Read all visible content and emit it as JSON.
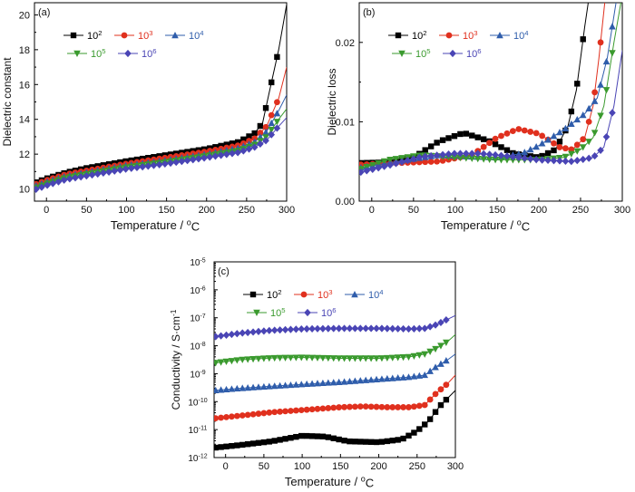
{
  "chart_data": [
    {
      "type": "line",
      "panel_label": "(a)",
      "xlabel": "Temperature / ",
      "xlabel_unit": "oC",
      "ylabel": "Dielectric constant",
      "xlim": [
        -15,
        300
      ],
      "ylim": [
        9.3,
        20.7
      ],
      "x_ticks": [
        0,
        50,
        100,
        150,
        200,
        250,
        300
      ],
      "y_ticks": [
        10,
        12,
        14,
        16,
        18,
        20
      ],
      "legend": "top-left",
      "series": [
        {
          "name": "10",
          "sup": "2",
          "color": "#000000",
          "marker": "square",
          "points": [
            [
              -15,
              10.35
            ],
            [
              0,
              10.6
            ],
            [
              25,
              10.95
            ],
            [
              50,
              11.2
            ],
            [
              100,
              11.6
            ],
            [
              150,
              11.95
            ],
            [
              200,
              12.3
            ],
            [
              240,
              12.7
            ],
            [
              260,
              13.2
            ],
            [
              270,
              13.8
            ],
            [
              278,
              15.5
            ],
            [
              290,
              18.0
            ],
            [
              300,
              20.6
            ]
          ]
        },
        {
          "name": "10",
          "sup": "3",
          "color": "#e0301e",
          "marker": "circle",
          "points": [
            [
              -15,
              10.25
            ],
            [
              0,
              10.5
            ],
            [
              25,
              10.85
            ],
            [
              50,
              11.05
            ],
            [
              100,
              11.45
            ],
            [
              150,
              11.8
            ],
            [
              200,
              12.15
            ],
            [
              240,
              12.5
            ],
            [
              260,
              12.9
            ],
            [
              275,
              13.6
            ],
            [
              290,
              15.2
            ],
            [
              300,
              17.0
            ]
          ]
        },
        {
          "name": "10",
          "sup": "4",
          "color": "#2f5dab",
          "marker": "triangle-up",
          "points": [
            [
              -15,
              10.15
            ],
            [
              0,
              10.4
            ],
            [
              25,
              10.75
            ],
            [
              50,
              10.95
            ],
            [
              100,
              11.35
            ],
            [
              150,
              11.65
            ],
            [
              200,
              12.0
            ],
            [
              240,
              12.35
            ],
            [
              260,
              12.7
            ],
            [
              275,
              13.3
            ],
            [
              290,
              14.5
            ],
            [
              300,
              15.4
            ]
          ]
        },
        {
          "name": "10",
          "sup": "5",
          "color": "#3a9a2e",
          "marker": "triangle-down",
          "points": [
            [
              -15,
              10.05
            ],
            [
              0,
              10.3
            ],
            [
              25,
              10.65
            ],
            [
              50,
              10.85
            ],
            [
              100,
              11.25
            ],
            [
              150,
              11.55
            ],
            [
              200,
              11.9
            ],
            [
              240,
              12.2
            ],
            [
              260,
              12.55
            ],
            [
              275,
              13.0
            ],
            [
              290,
              14.0
            ],
            [
              300,
              14.6
            ]
          ]
        },
        {
          "name": "10",
          "sup": "6",
          "color": "#4a45b5",
          "marker": "diamond",
          "points": [
            [
              -15,
              9.95
            ],
            [
              0,
              10.2
            ],
            [
              25,
              10.55
            ],
            [
              50,
              10.75
            ],
            [
              100,
              11.15
            ],
            [
              150,
              11.45
            ],
            [
              200,
              11.8
            ],
            [
              240,
              12.1
            ],
            [
              260,
              12.4
            ],
            [
              275,
              12.8
            ],
            [
              290,
              13.6
            ],
            [
              300,
              14.1
            ]
          ]
        }
      ]
    },
    {
      "type": "line",
      "panel_label": "(b)",
      "xlabel": "Temperature / ",
      "xlabel_unit": "oC",
      "ylabel": "Dielectric loss",
      "xlim": [
        -15,
        300
      ],
      "ylim": [
        0,
        0.025
      ],
      "x_ticks": [
        0,
        50,
        100,
        150,
        200,
        250,
        300
      ],
      "y_ticks": [
        0.0,
        0.01,
        0.02
      ],
      "y_tick_labels": [
        "0.00",
        "0.01",
        "0.02"
      ],
      "legend": "top-left",
      "series": [
        {
          "name": "10",
          "sup": "2",
          "color": "#000000",
          "marker": "square",
          "points": [
            [
              -15,
              0.0048
            ],
            [
              20,
              0.0049
            ],
            [
              50,
              0.0055
            ],
            [
              80,
              0.0075
            ],
            [
              110,
              0.0086
            ],
            [
              140,
              0.0076
            ],
            [
              170,
              0.006
            ],
            [
              200,
              0.0055
            ],
            [
              220,
              0.0065
            ],
            [
              235,
              0.0095
            ],
            [
              245,
              0.014
            ],
            [
              255,
              0.022
            ],
            [
              262,
              0.027
            ]
          ]
        },
        {
          "name": "10",
          "sup": "3",
          "color": "#e0301e",
          "marker": "circle",
          "points": [
            [
              -15,
              0.0046
            ],
            [
              30,
              0.0048
            ],
            [
              80,
              0.005
            ],
            [
              120,
              0.0058
            ],
            [
              150,
              0.008
            ],
            [
              175,
              0.0091
            ],
            [
              200,
              0.0085
            ],
            [
              225,
              0.0068
            ],
            [
              240,
              0.0065
            ],
            [
              255,
              0.008
            ],
            [
              265,
              0.012
            ],
            [
              272,
              0.018
            ],
            [
              280,
              0.026
            ]
          ]
        },
        {
          "name": "10",
          "sup": "4",
          "color": "#2f5dab",
          "marker": "triangle-up",
          "points": [
            [
              -15,
              0.0042
            ],
            [
              30,
              0.005
            ],
            [
              80,
              0.0058
            ],
            [
              120,
              0.0056
            ],
            [
              150,
              0.0055
            ],
            [
              180,
              0.006
            ],
            [
              200,
              0.007
            ],
            [
              230,
              0.009
            ],
            [
              255,
              0.011
            ],
            [
              270,
              0.013
            ],
            [
              282,
              0.018
            ],
            [
              300,
              0.03
            ]
          ]
        },
        {
          "name": "10",
          "sup": "5",
          "color": "#3a9a2e",
          "marker": "triangle-down",
          "points": [
            [
              -15,
              0.004
            ],
            [
              20,
              0.0052
            ],
            [
              60,
              0.0058
            ],
            [
              100,
              0.0055
            ],
            [
              150,
              0.0052
            ],
            [
              200,
              0.0052
            ],
            [
              230,
              0.0055
            ],
            [
              250,
              0.0065
            ],
            [
              265,
              0.008
            ],
            [
              278,
              0.012
            ],
            [
              290,
              0.02
            ],
            [
              300,
              0.026
            ]
          ]
        },
        {
          "name": "10",
          "sup": "6",
          "color": "#4a45b5",
          "marker": "diamond",
          "points": [
            [
              -15,
              0.0036
            ],
            [
              20,
              0.0045
            ],
            [
              60,
              0.0056
            ],
            [
              100,
              0.006
            ],
            [
              130,
              0.006
            ],
            [
              160,
              0.0057
            ],
            [
              200,
              0.0052
            ],
            [
              240,
              0.005
            ],
            [
              265,
              0.0055
            ],
            [
              278,
              0.0068
            ],
            [
              290,
              0.012
            ],
            [
              300,
              0.019
            ]
          ]
        }
      ]
    },
    {
      "type": "line",
      "panel_label": "(c)",
      "xlabel": "Temperature / ",
      "xlabel_unit": "oC",
      "ylabel": "Conductivity / S·cm",
      "ylabel_sup": "-1",
      "xlim": [
        -15,
        300
      ],
      "ylim_log10": [
        -12,
        -5
      ],
      "x_ticks": [
        0,
        50,
        100,
        150,
        200,
        250,
        300
      ],
      "y_ticks_log10": [
        -12,
        -11,
        -10,
        -9,
        -8,
        -7,
        -6,
        -5
      ],
      "y_tick_base": "10",
      "y_tick_exponents": [
        "-12",
        "-11",
        "-10",
        "-9",
        "-8",
        "-7",
        "-6",
        "-5"
      ],
      "legend": "top-left",
      "series": [
        {
          "name": "10",
          "sup": "2",
          "color": "#000000",
          "marker": "square",
          "points_log10": [
            [
              -15,
              -11.65
            ],
            [
              20,
              -11.55
            ],
            [
              60,
              -11.42
            ],
            [
              100,
              -11.22
            ],
            [
              130,
              -11.25
            ],
            [
              160,
              -11.42
            ],
            [
              200,
              -11.45
            ],
            [
              230,
              -11.35
            ],
            [
              250,
              -11.05
            ],
            [
              265,
              -10.7
            ],
            [
              280,
              -10.15
            ],
            [
              300,
              -9.6
            ]
          ]
        },
        {
          "name": "10",
          "sup": "3",
          "color": "#e0301e",
          "marker": "circle",
          "points_log10": [
            [
              -15,
              -10.6
            ],
            [
              20,
              -10.5
            ],
            [
              60,
              -10.38
            ],
            [
              100,
              -10.3
            ],
            [
              150,
              -10.2
            ],
            [
              180,
              -10.17
            ],
            [
              210,
              -10.2
            ],
            [
              240,
              -10.2
            ],
            [
              260,
              -10.12
            ],
            [
              275,
              -9.7
            ],
            [
              290,
              -9.35
            ],
            [
              300,
              -9.05
            ]
          ]
        },
        {
          "name": "10",
          "sup": "4",
          "color": "#2f5dab",
          "marker": "triangle-up",
          "points_log10": [
            [
              -15,
              -9.6
            ],
            [
              20,
              -9.52
            ],
            [
              60,
              -9.45
            ],
            [
              100,
              -9.38
            ],
            [
              150,
              -9.3
            ],
            [
              200,
              -9.2
            ],
            [
              240,
              -9.12
            ],
            [
              260,
              -9.05
            ],
            [
              275,
              -8.75
            ],
            [
              290,
              -8.5
            ],
            [
              300,
              -8.3
            ]
          ]
        },
        {
          "name": "10",
          "sup": "5",
          "color": "#3a9a2e",
          "marker": "triangle-down",
          "points_log10": [
            [
              -15,
              -8.62
            ],
            [
              20,
              -8.5
            ],
            [
              60,
              -8.44
            ],
            [
              100,
              -8.42
            ],
            [
              150,
              -8.45
            ],
            [
              200,
              -8.45
            ],
            [
              240,
              -8.4
            ],
            [
              260,
              -8.3
            ],
            [
              275,
              -8.1
            ],
            [
              290,
              -7.85
            ],
            [
              300,
              -7.6
            ]
          ]
        },
        {
          "name": "10",
          "sup": "6",
          "color": "#4a45b5",
          "marker": "diamond",
          "points_log10": [
            [
              -15,
              -7.68
            ],
            [
              20,
              -7.55
            ],
            [
              60,
              -7.45
            ],
            [
              100,
              -7.4
            ],
            [
              150,
              -7.38
            ],
            [
              200,
              -7.38
            ],
            [
              240,
              -7.4
            ],
            [
              260,
              -7.38
            ],
            [
              275,
              -7.25
            ],
            [
              290,
              -7.05
            ],
            [
              300,
              -6.92
            ]
          ]
        }
      ]
    }
  ]
}
